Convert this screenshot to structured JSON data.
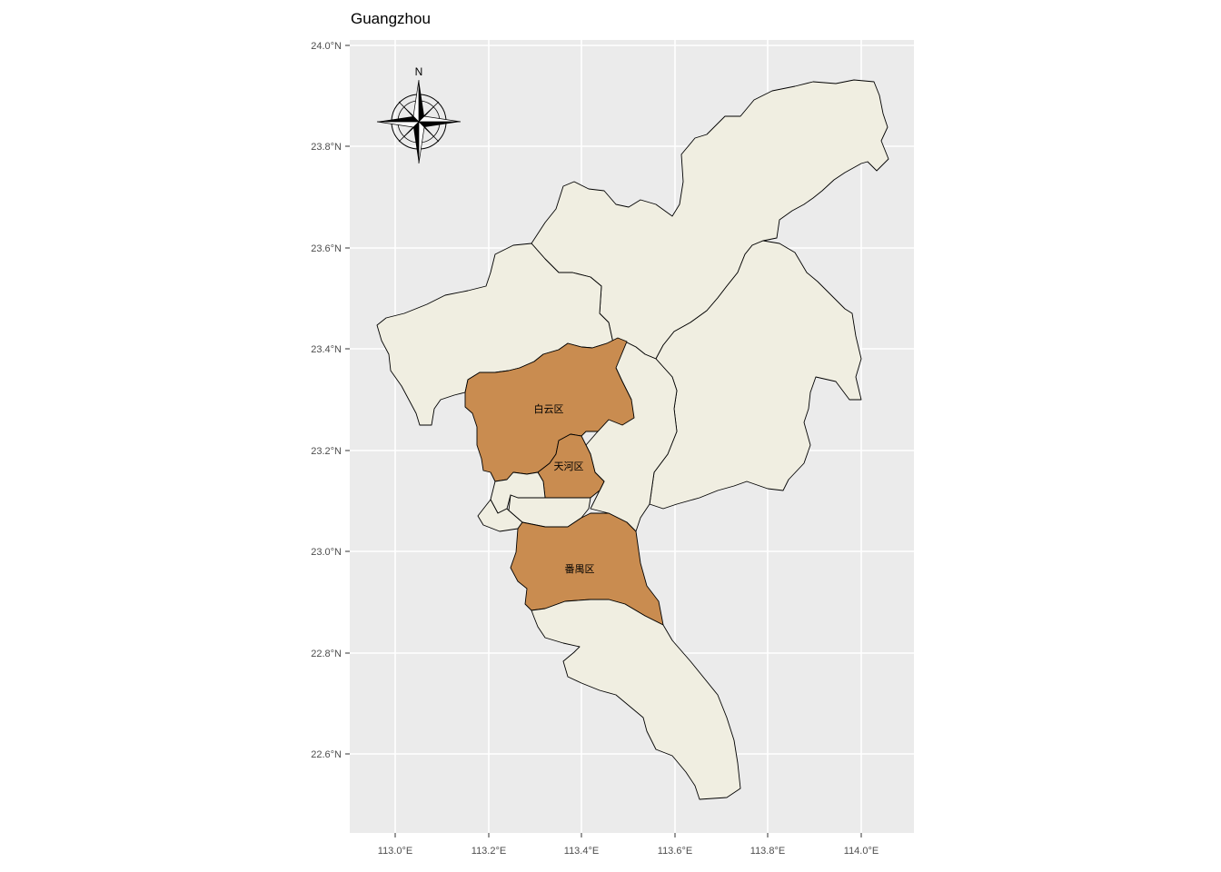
{
  "title": "Guangzhou",
  "colors": {
    "panel_bg": "#ebebeb",
    "grid": "#ffffff",
    "highlight": "#c98c50",
    "land": "#f0eee1",
    "border": "#000000"
  },
  "axes": {
    "x_ticks": [
      "113.0°E",
      "113.2°E",
      "113.4°E",
      "113.6°E",
      "113.8°E",
      "114.0°E"
    ],
    "y_ticks": [
      "24.0°N",
      "23.8°N",
      "23.6°N",
      "23.4°N",
      "23.2°N",
      "23.0°N",
      "22.8°N",
      "22.6°N"
    ]
  },
  "compass": {
    "north_label": "N",
    "icon": "compass-rose-icon"
  },
  "districts": [
    {
      "name": "白云区",
      "highlighted": true
    },
    {
      "name": "天河区",
      "highlighted": true
    },
    {
      "name": "番禺区",
      "highlighted": true
    }
  ]
}
